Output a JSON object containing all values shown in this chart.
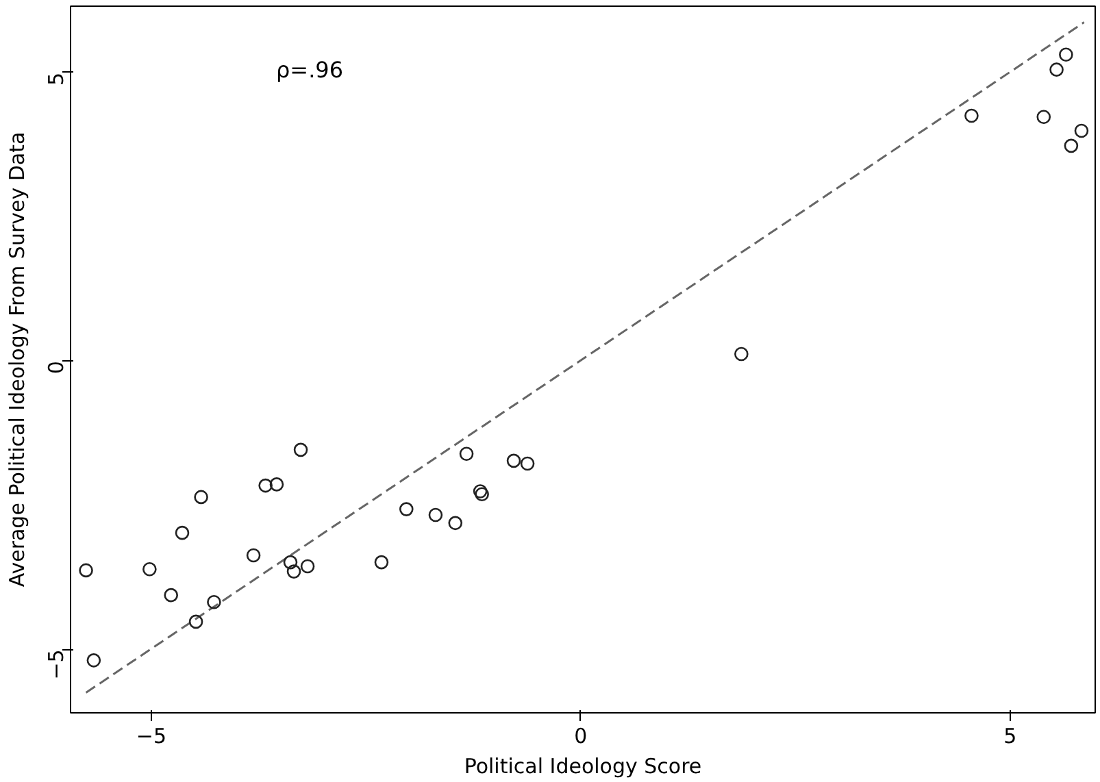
{
  "chart_data": {
    "type": "scatter",
    "xlabel": "Political Ideology Score",
    "ylabel": "Average Political Ideology From Survey Data",
    "xlim": [
      -5.94,
      5.99
    ],
    "ylim": [
      -6.1,
      6.15
    ],
    "xticks": [
      -5,
      0,
      5
    ],
    "yticks": [
      -5,
      0,
      5
    ],
    "grid": false,
    "annotations": [
      "ρ=.96"
    ],
    "series": [
      {
        "color": "#222222",
        "marker": "circle",
        "x": [
          -5.76,
          -5.67,
          -5.02,
          -4.77,
          -4.64,
          -4.48,
          -4.42,
          -4.27,
          -3.81,
          -3.67,
          -3.54,
          -3.38,
          -3.34,
          -3.26,
          -3.18,
          -2.32,
          -2.03,
          -1.69,
          -1.46,
          -1.33,
          -1.17,
          -1.15,
          -0.78,
          -0.62,
          1.87,
          4.55,
          5.39,
          5.54,
          5.65,
          5.71,
          5.83
        ],
        "values": [
          -3.63,
          -5.19,
          -3.61,
          -4.06,
          -2.98,
          -4.52,
          -2.36,
          -4.18,
          -3.37,
          -2.16,
          -2.14,
          -3.49,
          -3.65,
          -1.54,
          -3.56,
          -3.49,
          -2.57,
          -2.67,
          -2.81,
          -1.61,
          -2.26,
          -2.31,
          -1.73,
          -1.78,
          0.12,
          4.25,
          4.23,
          5.05,
          5.31,
          3.73,
          3.99
        ]
      },
      {
        "type": "line",
        "color": "#666666",
        "line_style": "dashed",
        "x": [
          -5.76,
          5.86
        ],
        "values": [
          -5.75,
          5.87
        ]
      }
    ]
  }
}
